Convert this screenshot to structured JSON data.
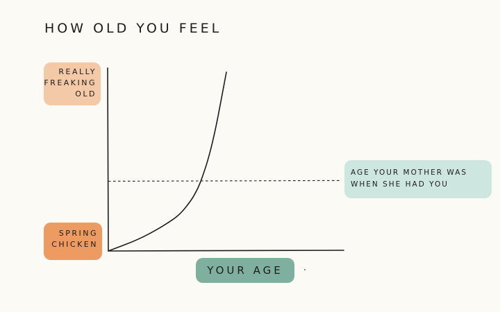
{
  "title": "HOW OLD YOU FEEL",
  "chart_data": {
    "type": "line",
    "title": "HOW OLD YOU FEEL",
    "xlabel": "YOUR AGE",
    "ylabel_top": [
      "REALLY",
      "FREAKING",
      "OLD"
    ],
    "ylabel_bottom": [
      "SPRING",
      "CHICKEN"
    ],
    "reference_line": {
      "label": [
        "AGE YOUR MOTHER WAS",
        "WHEN SHE HAD YOU"
      ],
      "style": "dashed",
      "y": 0.39
    },
    "xlim": [
      0,
      1
    ],
    "ylim": [
      0,
      1
    ],
    "series": [
      {
        "x": [
          0,
          0.05,
          0.1,
          0.15,
          0.2,
          0.25,
          0.3,
          0.35,
          0.38,
          0.4,
          0.42,
          0.44,
          0.46,
          0.48,
          0.5
        ],
        "values": [
          0,
          0.025,
          0.05,
          0.08,
          0.115,
          0.155,
          0.2,
          0.28,
          0.35,
          0.42,
          0.5,
          0.6,
          0.72,
          0.86,
          1.0
        ]
      }
    ],
    "grid": false,
    "legend": "none"
  },
  "colors": {
    "background": "#fcfaf5",
    "ink": "#1c1c1c",
    "top_label_bg": "#f4c9a8",
    "bottom_label_bg": "#ee9b62",
    "reference_label_bg": "#cde6df",
    "xlabel_bg": "#7fb09f"
  }
}
